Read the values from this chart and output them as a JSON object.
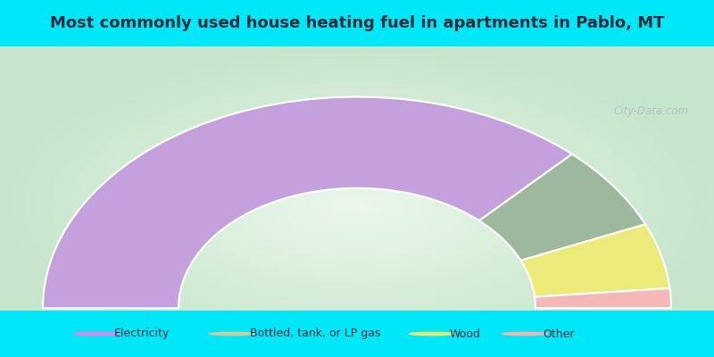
{
  "title": "Most commonly used house heating fuel in apartments in Pablo, MT",
  "title_fontsize": 13,
  "title_color": "#2a2a3a",
  "background_cyan": "#00e8f8",
  "slices": [
    {
      "label": "Electricity",
      "value": 0.74,
      "color": "#c4a0dc"
    },
    {
      "label": "Bottled, tank, or LP gas",
      "value": 0.13,
      "color": "#9db89d"
    },
    {
      "label": "Wood",
      "value": 0.1,
      "color": "#ecea78"
    },
    {
      "label": "Other",
      "value": 0.03,
      "color": "#f5b8b8"
    }
  ],
  "legend_marker_colors": [
    "#e880e8",
    "#d8c898",
    "#ece870",
    "#f8b0b0"
  ],
  "legend_labels": [
    "Electricity",
    "Bottled, tank, or LP gas",
    "Wood",
    "Other"
  ],
  "watermark": "City-Data.com"
}
